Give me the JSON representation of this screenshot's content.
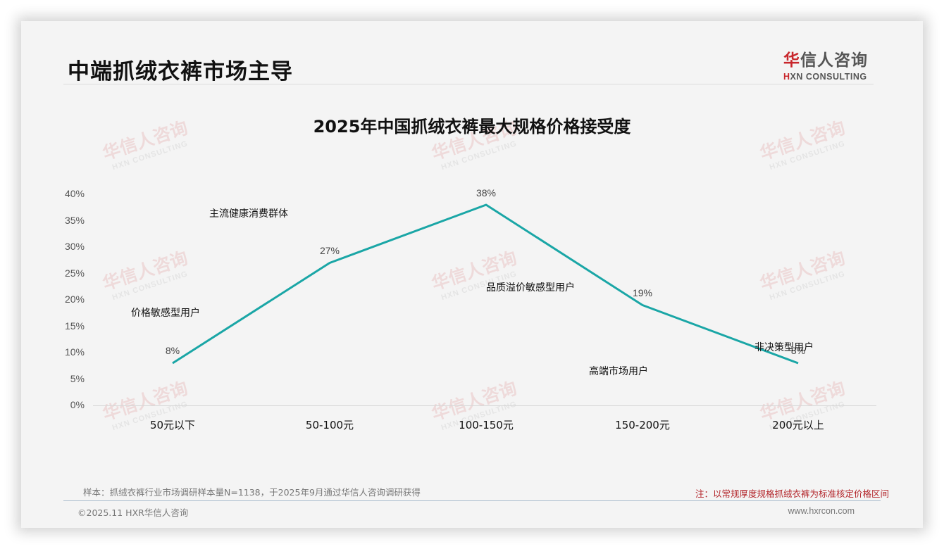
{
  "header": {
    "page_title": "中端抓绒衣裤市场主导",
    "logo": {
      "cn_red": "华",
      "cn_rest": "信人咨询",
      "en_red": "H",
      "en_rest": "XN CONSULTING"
    }
  },
  "watermark": {
    "cn": "华信人咨询",
    "en": "HXN CONSULTING"
  },
  "chart_data": {
    "type": "line",
    "title": "2025年中国抓绒衣裤最大规格价格接受度",
    "xlabel": "",
    "ylabel": "",
    "categories": [
      "50元以下",
      "50-100元",
      "100-150元",
      "150-200元",
      "200元以上"
    ],
    "series": [
      {
        "name": "价格接受度",
        "values": [
          8,
          27,
          38,
          19,
          8
        ],
        "color": "#1aa6a6"
      }
    ],
    "data_labels": [
      "8%",
      "27%",
      "38%",
      "19%",
      "8%"
    ],
    "y_ticks": [
      "0%",
      "5%",
      "10%",
      "15%",
      "20%",
      "25%",
      "30%",
      "35%",
      "40%"
    ],
    "ylim": [
      0,
      40
    ],
    "grid": false,
    "legend": "none",
    "annotations": [
      {
        "text": "价格敏感型用户",
        "near": "50元以下"
      },
      {
        "text": "主流健康消费群体",
        "near": "50-100元"
      },
      {
        "text": "品质溢价敏感型用户",
        "near": "100-150元"
      },
      {
        "text": "高端市场用户",
        "near": "150-200元"
      },
      {
        "text": "非决策型用户",
        "near": "200元以上"
      }
    ]
  },
  "footer": {
    "source": "样本：抓绒衣裤行业市场调研样本量N=1138，于2025年9月通过华信人咨询调研获得",
    "note": "注：以常规厚度规格抓绒衣裤为标准核定价格区间",
    "copyright": "©2025.11 HXR华信人咨询",
    "website": "www.hxrcon.com"
  }
}
